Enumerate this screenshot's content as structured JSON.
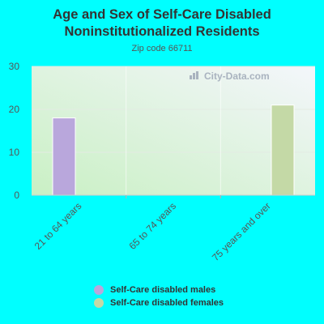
{
  "title_line1": "Age and Sex of Self-Care Disabled",
  "title_line2": "Noninstitutionalized Residents",
  "subtitle": "Zip code 66711",
  "watermark": "City-Data.com",
  "chart_data": {
    "type": "bar",
    "categories": [
      "21 to 64 years",
      "65 to 74 years",
      "75 years and over"
    ],
    "series": [
      {
        "name": "Self-Care disabled males",
        "color": "#b9a7dc",
        "values": [
          18,
          0,
          0
        ]
      },
      {
        "name": "Self-Care disabled females",
        "color": "#c4d9a6",
        "values": [
          0,
          0,
          21
        ]
      }
    ],
    "ylim": [
      0,
      30
    ],
    "yticks": [
      0,
      10,
      20,
      30
    ],
    "grid": true,
    "legend_position": "bottom"
  }
}
